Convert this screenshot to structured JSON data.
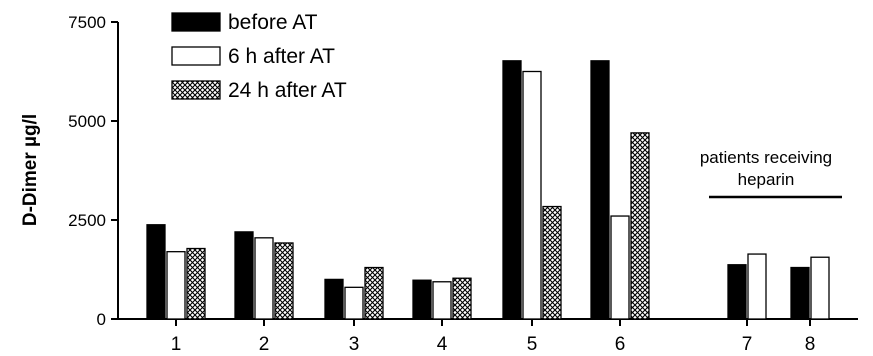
{
  "chart_data": {
    "type": "bar",
    "title": "",
    "xlabel": "",
    "ylabel": "D-Dimer µg/l",
    "ylim": [
      0,
      7500
    ],
    "yticks": [
      "0",
      "2500",
      "5000",
      "7500"
    ],
    "grid": false,
    "legend_position": "top-left",
    "categories": [
      "1",
      "2",
      "3",
      "4",
      "5",
      "6",
      "7",
      "8"
    ],
    "series": [
      {
        "name": "before AT",
        "pattern": "solid",
        "color": "#000000",
        "values": [
          2380,
          2200,
          1000,
          980,
          6520,
          6520,
          1370,
          1300
        ]
      },
      {
        "name": "6 h after AT",
        "pattern": "outline",
        "color": "#ffffff",
        "values": [
          1700,
          2050,
          800,
          940,
          6250,
          2600,
          1640,
          1560
        ]
      },
      {
        "name": "24 h after AT",
        "pattern": "crosshatch",
        "color": "#888888",
        "values": [
          1780,
          1920,
          1300,
          1030,
          2840,
          4700,
          null,
          null
        ]
      }
    ],
    "annotation": {
      "lines": [
        "patients receiving",
        "heparin"
      ]
    }
  }
}
